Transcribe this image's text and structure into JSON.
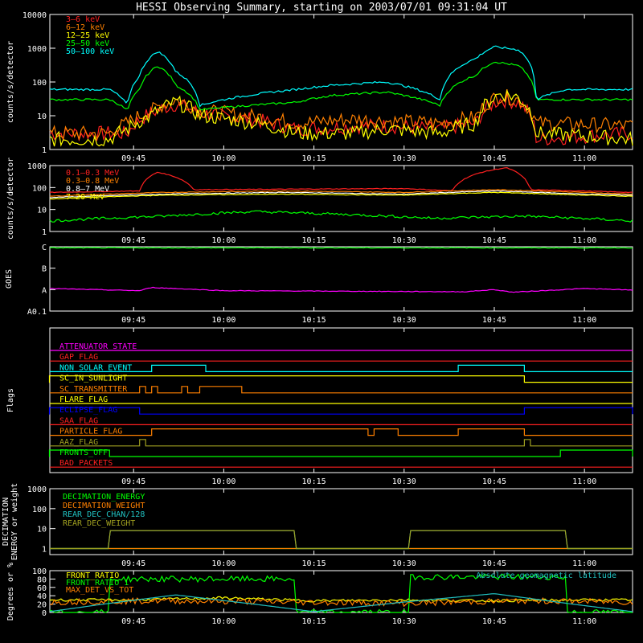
{
  "title": "HESSI Observing Summary, starting on 2003/07/01 09:31:04 UT",
  "time_axis": {
    "start": "09:31:04",
    "end": "11:08",
    "tick_labels": [
      "09:45",
      "10:00",
      "10:15",
      "10:30",
      "10:45",
      "11:00"
    ]
  },
  "colors": {
    "white": "#ffffff",
    "red": "#ff2020",
    "orange": "#ff8000",
    "yellow": "#ffff00",
    "green": "#00ff00",
    "cyan": "#00ffff",
    "magenta": "#ff00ff",
    "blue": "#0000ff",
    "olive": "#a0a020",
    "teal": "#20c0c0"
  },
  "chart_data": [
    {
      "type": "line",
      "panel": "low-energy-rates",
      "ylabel": "counts/s/detector",
      "yscale": "log",
      "ylim": [
        1,
        10000
      ],
      "y_ticks": [
        "1",
        "10",
        "100",
        "1000",
        "10000"
      ],
      "legend_placement": "top-left",
      "series": [
        {
          "name": "3–6 keV",
          "color": "#ff2020",
          "x": [
            "09:31",
            "09:41",
            "09:44",
            "09:48",
            "09:52",
            "09:56",
            "10:12",
            "10:22",
            "10:27",
            "10:36",
            "10:42",
            "10:46",
            "10:49",
            "10:52",
            "11:08"
          ],
          "y": [
            3,
            3,
            3,
            12,
            22,
            12,
            4,
            5,
            5,
            4,
            6,
            30,
            25,
            2,
            3
          ]
        },
        {
          "name": "6–12 keV",
          "color": "#ff8000",
          "x": [
            "09:31",
            "09:41",
            "09:44",
            "09:48",
            "09:52",
            "09:56",
            "10:12",
            "10:22",
            "10:27",
            "10:36",
            "10:42",
            "10:46",
            "10:49",
            "10:52",
            "11:08"
          ],
          "y": [
            3,
            3,
            6,
            14,
            30,
            14,
            6,
            8,
            7,
            6,
            9,
            40,
            30,
            6,
            5
          ]
        },
        {
          "name": "12–25 keV",
          "color": "#ffff00",
          "x": [
            "09:31",
            "09:41",
            "09:44",
            "09:48",
            "09:52",
            "09:56",
            "10:12",
            "10:22",
            "10:27",
            "10:36",
            "10:42",
            "10:46",
            "10:49",
            "10:52",
            "11:08"
          ],
          "y": [
            2,
            2,
            4,
            10,
            25,
            10,
            3,
            3,
            4,
            3,
            6,
            45,
            35,
            3,
            2
          ]
        },
        {
          "name": "25–50 keV",
          "color": "#00ff00",
          "x": [
            "09:31",
            "09:41",
            "09:44",
            "09:46",
            "09:49",
            "09:52",
            "09:56",
            "10:12",
            "10:18",
            "10:27",
            "10:36",
            "10:42",
            "10:45",
            "10:49",
            "10:52",
            "10:57",
            "11:08"
          ],
          "y": [
            30,
            30,
            14,
            60,
            300,
            80,
            15,
            25,
            40,
            50,
            20,
            160,
            400,
            300,
            30,
            30,
            30
          ]
        },
        {
          "name": "50–100 keV",
          "color": "#00ffff",
          "x": [
            "09:31",
            "09:41",
            "09:44",
            "09:46",
            "09:49",
            "09:52",
            "09:56",
            "10:12",
            "10:18",
            "10:27",
            "10:36",
            "10:42",
            "10:45",
            "10:49",
            "10:52",
            "10:57",
            "11:08"
          ],
          "y": [
            60,
            60,
            20,
            150,
            800,
            200,
            20,
            60,
            80,
            100,
            30,
            500,
            1100,
            900,
            30,
            60,
            60
          ]
        }
      ]
    },
    {
      "type": "line",
      "panel": "high-energy-rates",
      "ylabel": "counts/s/detector",
      "yscale": "log",
      "ylim": [
        1,
        1000
      ],
      "y_ticks": [
        "1",
        "10",
        "100",
        "1000"
      ],
      "legend_placement": "top-left",
      "series": [
        {
          "name": "0.1–0.3 MeV",
          "color": "#ff2020",
          "x": [
            "09:31",
            "09:46",
            "09:49",
            "09:52",
            "09:55",
            "10:30",
            "10:38",
            "10:43",
            "10:47",
            "10:51",
            "11:08"
          ],
          "y": [
            60,
            70,
            500,
            300,
            80,
            90,
            70,
            500,
            800,
            80,
            60
          ]
        },
        {
          "name": "0.3–0.8 MeV",
          "color": "#ff8000",
          "x": [
            "09:31",
            "09:50",
            "10:10",
            "10:30",
            "10:45",
            "11:00",
            "11:08"
          ],
          "y": [
            40,
            60,
            70,
            60,
            80,
            60,
            50
          ]
        },
        {
          "name": "0.8–7 MeV",
          "color": "#ffffff",
          "x": [
            "09:31",
            "09:50",
            "10:10",
            "10:30",
            "10:45",
            "11:00",
            "11:08"
          ],
          "y": [
            35,
            50,
            60,
            50,
            70,
            50,
            45
          ]
        },
        {
          "name": "7–20 MeV",
          "color": "#ffff00",
          "x": [
            "09:31",
            "09:50",
            "10:10",
            "10:30",
            "10:45",
            "11:00",
            "11:08"
          ],
          "y": [
            30,
            45,
            50,
            45,
            60,
            45,
            40
          ]
        },
        {
          "name": "",
          "color": "#00ff00",
          "x": [
            "09:31",
            "09:50",
            "10:05",
            "10:20",
            "10:35",
            "10:50",
            "11:08"
          ],
          "y": [
            3,
            5,
            8,
            6,
            4,
            5,
            3
          ]
        }
      ]
    },
    {
      "type": "line",
      "panel": "goes",
      "ylabel": "GOES",
      "y_ticks": [
        "A0.1",
        "A",
        "B",
        "C"
      ],
      "series": [
        {
          "name": "",
          "color": "#00ff00",
          "x": [
            "09:31",
            "11:08"
          ],
          "y": [
            2.95,
            2.95
          ]
        },
        {
          "name": "",
          "color": "#ff00ff",
          "x": [
            "09:31",
            "09:46",
            "09:48",
            "10:00",
            "10:40",
            "10:45",
            "10:48",
            "11:00",
            "11:08"
          ],
          "y": [
            1.05,
            0.95,
            1.1,
            0.95,
            0.9,
            1.0,
            0.88,
            1.05,
            0.98
          ]
        }
      ]
    },
    {
      "type": "line",
      "panel": "flags",
      "ylabel": "Flags",
      "flags": [
        {
          "name": "ATTENUATOR_STATE",
          "color": "#ff00ff",
          "high": []
        },
        {
          "name": "GAP_FLAG",
          "color": "#ff2020",
          "high": []
        },
        {
          "name": "NON_SOLAR_EVENT",
          "color": "#00ffff",
          "high": [
            [
              "09:48",
              "09:57"
            ],
            [
              "10:39",
              "10:50"
            ]
          ]
        },
        {
          "name": "SC_IN_SUNLIGHT",
          "color": "#ffff00",
          "high": [
            [
              "09:31",
              "10:50"
            ]
          ]
        },
        {
          "name": "SC_TRANSMITTER",
          "color": "#ff8000",
          "high": [
            [
              "09:46",
              "09:47"
            ],
            [
              "09:48",
              "09:49"
            ],
            [
              "09:53",
              "09:54"
            ],
            [
              "09:56",
              "10:03"
            ]
          ]
        },
        {
          "name": "FLARE_FLAG",
          "color": "#ffff00",
          "high": []
        },
        {
          "name": "ECLIPSE_FLAG",
          "color": "#0000ff",
          "high": [
            [
              "09:31",
              "09:46"
            ],
            [
              "10:50",
              "11:08"
            ]
          ]
        },
        {
          "name": "SAA_FLAG",
          "color": "#ff2020",
          "high": []
        },
        {
          "name": "PARTICLE_FLAG",
          "color": "#ff8000",
          "high": [
            [
              "09:48",
              "10:24"
            ],
            [
              "10:25",
              "10:29"
            ],
            [
              "10:39",
              "10:50"
            ]
          ]
        },
        {
          "name": "AAZ_FLAG",
          "color": "#a0a020",
          "high": [
            [
              "09:46",
              "09:47"
            ],
            [
              "10:50",
              "10:51"
            ]
          ]
        },
        {
          "name": "FRONTS_OFF",
          "color": "#00ff00",
          "high": [
            [
              "09:31",
              "09:41"
            ],
            [
              "10:56",
              "11:08"
            ]
          ]
        },
        {
          "name": "BAD_PACKETS",
          "color": "#ff2020",
          "high": []
        }
      ]
    },
    {
      "type": "line",
      "panel": "decimation",
      "ylabel": "DECIMATION ENERGY or weight",
      "yscale": "log",
      "ylim": [
        0.5,
        1000
      ],
      "y_ticks": [
        "1",
        "10",
        "100",
        "1000"
      ],
      "legend_placement": "top-left",
      "series": [
        {
          "name": "DECIMATION_ENERGY",
          "color": "#00ff00",
          "x": [
            "09:31",
            "11:08"
          ],
          "y": [
            1,
            1
          ]
        },
        {
          "name": "DECIMATION_WEIGHT",
          "color": "#ff8000",
          "x": [
            "09:31",
            "11:08"
          ],
          "y": [
            1,
            1
          ]
        },
        {
          "name": "REAR_DEC_CHAN/128",
          "color": "#20c0c0",
          "x": [
            "09:31",
            "09:41",
            "09:41",
            "10:12",
            "10:12",
            "10:31",
            "10:31",
            "10:57",
            "10:57",
            "11:08"
          ],
          "y": [
            1,
            1,
            8,
            8,
            1,
            1,
            8,
            8,
            1,
            1
          ]
        },
        {
          "name": "REAR_DEC_WEIGHT",
          "color": "#a0a020",
          "x": [
            "09:31",
            "09:41",
            "09:41",
            "10:12",
            "10:12",
            "10:31",
            "10:31",
            "10:57",
            "10:57",
            "11:08"
          ],
          "y": [
            1,
            1,
            8,
            8,
            1,
            1,
            8,
            8,
            1,
            1
          ]
        }
      ]
    },
    {
      "type": "line",
      "panel": "ratios",
      "ylabel": "Degrees or %",
      "ylim": [
        0,
        100
      ],
      "y_ticks": [
        "0",
        "20",
        "40",
        "60",
        "80",
        "100"
      ],
      "legend_placement": "top-left",
      "annotation": "Absolute geomagnetic latitude",
      "series": [
        {
          "name": "FRONT_RATIO",
          "color": "#ffff00",
          "x": [
            "09:31",
            "09:45",
            "10:00",
            "10:15",
            "10:30",
            "10:45",
            "11:00",
            "11:08"
          ],
          "y": [
            30,
            30,
            35,
            28,
            30,
            28,
            30,
            30
          ]
        },
        {
          "name": "FRONT_RATIO_1",
          "color": "#00ff00",
          "x": [
            "09:31",
            "09:41",
            "09:41",
            "10:12",
            "10:12",
            "10:31",
            "10:31",
            "10:57",
            "10:57",
            "11:08"
          ],
          "y": [
            0,
            0,
            80,
            80,
            0,
            0,
            85,
            85,
            0,
            0
          ]
        },
        {
          "name": "MAX_DET_VS_TOT",
          "color": "#ff8000",
          "x": [
            "09:31",
            "09:50",
            "10:10",
            "10:30",
            "10:50",
            "11:08"
          ],
          "y": [
            25,
            28,
            25,
            22,
            28,
            25
          ]
        },
        {
          "name": "",
          "color": "#20c0c0",
          "x": [
            "09:31",
            "09:40",
            "09:52",
            "10:05",
            "10:15",
            "10:30",
            "10:45",
            "10:58",
            "11:08"
          ],
          "y": [
            2,
            20,
            42,
            20,
            2,
            25,
            45,
            20,
            2
          ]
        }
      ]
    }
  ]
}
